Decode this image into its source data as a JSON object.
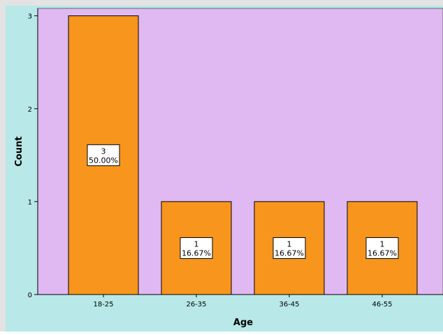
{
  "chart_data": {
    "type": "bar",
    "title": "",
    "xlabel": "Age",
    "ylabel": "Count",
    "categories": [
      "18-25",
      "26-35",
      "36-45",
      "46-55"
    ],
    "values": [
      3,
      1,
      1,
      1
    ],
    "percent_labels": [
      "50.00%",
      "16.67%",
      "16.67%",
      "16.67%"
    ],
    "ylim": [
      0,
      3.08
    ],
    "yticks": [
      "0",
      "1",
      "2",
      "3"
    ],
    "grid": false,
    "legend": "none",
    "colors": {
      "bar": "#f7951d",
      "plot_background": "#e0b8f2",
      "outer_background": "#b8e8e8",
      "frame_outer": "#e3e3e3",
      "label_box": "#ffffff"
    }
  }
}
